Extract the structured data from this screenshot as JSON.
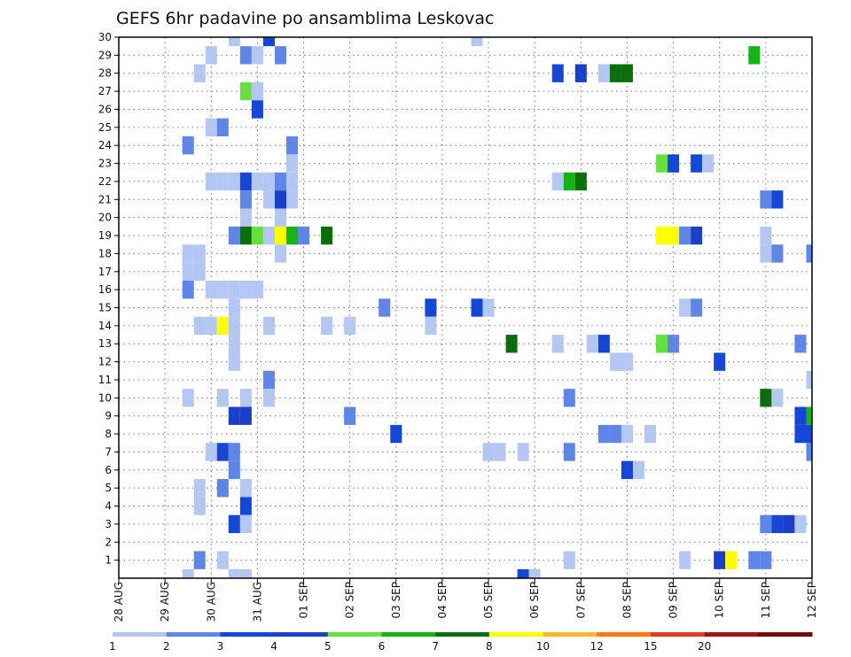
{
  "chart_data": {
    "type": "heatmap",
    "title": "GEFS 6hr padavine po ansamblima Leskovac",
    "xlabel": "",
    "ylabel": "",
    "x_tick_labels": [
      "28 AUG",
      "29 AUG",
      "30 AUG",
      "31 AUG",
      "01 SEP",
      "02 SEP",
      "03 SEP",
      "04 SEP",
      "05 SEP",
      "06 SEP",
      "07 SEP",
      "08 SEP",
      "09 SEP",
      "10 SEP",
      "11 SEP",
      "12 SEP"
    ],
    "y_tick_labels": [
      "1",
      "2",
      "3",
      "4",
      "5",
      "6",
      "7",
      "8",
      "9",
      "10",
      "11",
      "12",
      "13",
      "14",
      "15",
      "16",
      "17",
      "18",
      "19",
      "20",
      "21",
      "22",
      "23",
      "24",
      "25",
      "26",
      "27",
      "28",
      "29",
      "30"
    ],
    "x_range_days": [
      0,
      15
    ],
    "y_range": [
      0,
      30
    ],
    "grid": true,
    "colorbar": {
      "labels": [
        "1",
        "2",
        "3",
        "4",
        "5",
        "6",
        "7",
        "8",
        "10",
        "12",
        "15",
        "20"
      ],
      "colors": [
        "#b4c6f2",
        "#5f86e6",
        "#1446d8",
        "#1a3fc8",
        "#66e040",
        "#14b414",
        "#0a6e0a",
        "#ffff00",
        "#ffb432",
        "#ff7814",
        "#e03c28",
        "#a01414",
        "#6e0a0a"
      ]
    },
    "cells": [
      [
        2.5,
        30,
        1
      ],
      [
        3.25,
        30,
        3
      ],
      [
        7.75,
        30,
        1
      ],
      [
        2.0,
        29,
        1
      ],
      [
        2.75,
        29,
        2
      ],
      [
        3.0,
        29,
        1
      ],
      [
        3.5,
        29,
        2
      ],
      [
        13.75,
        29,
        6
      ],
      [
        1.75,
        28,
        1
      ],
      [
        9.5,
        28,
        3
      ],
      [
        10.0,
        28,
        4
      ],
      [
        10.5,
        28,
        1
      ],
      [
        10.75,
        28,
        7
      ],
      [
        11.0,
        28,
        7
      ],
      [
        2.75,
        27,
        5
      ],
      [
        3.0,
        27,
        1
      ],
      [
        3.0,
        26,
        3
      ],
      [
        2.0,
        25,
        1
      ],
      [
        2.25,
        25,
        2
      ],
      [
        1.5,
        24,
        2
      ],
      [
        3.75,
        24,
        2
      ],
      [
        3.75,
        23,
        1
      ],
      [
        11.75,
        23,
        5
      ],
      [
        12.0,
        23,
        3
      ],
      [
        12.5,
        23,
        3
      ],
      [
        12.75,
        23,
        1
      ],
      [
        2.0,
        22,
        1
      ],
      [
        2.25,
        22,
        1
      ],
      [
        2.5,
        22,
        1
      ],
      [
        2.75,
        22,
        3
      ],
      [
        3.0,
        22,
        1
      ],
      [
        3.25,
        22,
        1
      ],
      [
        3.5,
        22,
        2
      ],
      [
        3.75,
        22,
        1
      ],
      [
        9.5,
        22,
        1
      ],
      [
        9.75,
        22,
        6
      ],
      [
        10.0,
        22,
        7
      ],
      [
        2.75,
        21,
        2
      ],
      [
        3.25,
        21,
        1
      ],
      [
        3.5,
        21,
        4
      ],
      [
        3.75,
        21,
        1
      ],
      [
        14.0,
        21,
        2
      ],
      [
        14.25,
        21,
        3
      ],
      [
        2.75,
        20,
        1
      ],
      [
        3.5,
        20,
        1
      ],
      [
        2.5,
        19,
        2
      ],
      [
        2.75,
        19,
        7
      ],
      [
        3.0,
        19,
        5
      ],
      [
        3.25,
        19,
        1
      ],
      [
        3.5,
        19,
        8
      ],
      [
        3.75,
        19,
        6
      ],
      [
        4.0,
        19,
        2
      ],
      [
        4.5,
        19,
        7
      ],
      [
        11.75,
        19,
        8
      ],
      [
        12.0,
        19,
        8
      ],
      [
        12.25,
        19,
        2
      ],
      [
        12.5,
        19,
        4
      ],
      [
        14.0,
        19,
        1
      ],
      [
        1.5,
        18,
        1
      ],
      [
        1.75,
        18,
        1
      ],
      [
        3.5,
        18,
        1
      ],
      [
        14.0,
        18,
        1
      ],
      [
        14.25,
        18,
        2
      ],
      [
        15.0,
        18,
        2
      ],
      [
        1.5,
        17,
        1
      ],
      [
        1.75,
        17,
        1
      ],
      [
        1.5,
        16,
        2
      ],
      [
        2.0,
        16,
        1
      ],
      [
        2.25,
        16,
        1
      ],
      [
        2.5,
        16,
        1
      ],
      [
        2.75,
        16,
        1
      ],
      [
        3.0,
        16,
        1
      ],
      [
        2.5,
        15,
        1
      ],
      [
        5.75,
        15,
        2
      ],
      [
        6.75,
        15,
        3
      ],
      [
        7.75,
        15,
        3
      ],
      [
        8.0,
        15,
        1
      ],
      [
        12.25,
        15,
        1
      ],
      [
        12.5,
        15,
        2
      ],
      [
        1.75,
        14,
        1
      ],
      [
        2.0,
        14,
        1
      ],
      [
        2.25,
        14,
        8
      ],
      [
        2.5,
        14,
        1
      ],
      [
        3.25,
        14,
        1
      ],
      [
        4.5,
        14,
        1
      ],
      [
        5.0,
        14,
        1
      ],
      [
        6.75,
        14,
        1
      ],
      [
        2.5,
        13,
        1
      ],
      [
        8.5,
        13,
        7
      ],
      [
        9.5,
        13,
        1
      ],
      [
        10.25,
        13,
        1
      ],
      [
        10.5,
        13,
        3
      ],
      [
        11.75,
        13,
        5
      ],
      [
        12.0,
        13,
        2
      ],
      [
        14.75,
        13,
        2
      ],
      [
        2.5,
        12,
        1
      ],
      [
        10.75,
        12,
        1
      ],
      [
        11.0,
        12,
        1
      ],
      [
        13.0,
        12,
        3
      ],
      [
        3.25,
        11,
        2
      ],
      [
        15.0,
        11,
        1
      ],
      [
        1.5,
        10,
        1
      ],
      [
        2.25,
        10,
        1
      ],
      [
        2.75,
        10,
        1
      ],
      [
        3.25,
        10,
        1
      ],
      [
        9.75,
        10,
        2
      ],
      [
        14.0,
        10,
        7
      ],
      [
        14.25,
        10,
        1
      ],
      [
        2.5,
        9,
        4
      ],
      [
        2.75,
        9,
        4
      ],
      [
        5.0,
        9,
        2
      ],
      [
        14.75,
        9,
        3
      ],
      [
        15.0,
        9,
        6
      ],
      [
        6.0,
        8,
        3
      ],
      [
        10.5,
        8,
        2
      ],
      [
        10.75,
        8,
        2
      ],
      [
        11.0,
        8,
        1
      ],
      [
        11.5,
        8,
        1
      ],
      [
        14.75,
        8,
        3
      ],
      [
        15.0,
        8,
        3
      ],
      [
        2.0,
        7,
        1
      ],
      [
        2.25,
        7,
        3
      ],
      [
        2.5,
        7,
        2
      ],
      [
        8.0,
        7,
        1
      ],
      [
        8.25,
        7,
        1
      ],
      [
        8.75,
        7,
        1
      ],
      [
        9.75,
        7,
        2
      ],
      [
        15.0,
        7,
        2
      ],
      [
        2.5,
        6,
        2
      ],
      [
        11.0,
        6,
        3
      ],
      [
        11.25,
        6,
        1
      ],
      [
        1.75,
        5,
        1
      ],
      [
        2.25,
        5,
        2
      ],
      [
        2.75,
        5,
        1
      ],
      [
        1.75,
        4,
        1
      ],
      [
        2.75,
        4,
        3
      ],
      [
        2.5,
        3,
        3
      ],
      [
        2.75,
        3,
        1
      ],
      [
        14.0,
        3,
        2
      ],
      [
        14.25,
        3,
        3
      ],
      [
        14.5,
        3,
        4
      ],
      [
        14.75,
        3,
        1
      ],
      [
        1.75,
        1,
        2
      ],
      [
        2.25,
        1,
        1
      ],
      [
        9.75,
        1,
        1
      ],
      [
        12.25,
        1,
        1
      ],
      [
        13.0,
        1,
        4
      ],
      [
        13.25,
        1,
        8
      ],
      [
        13.75,
        1,
        2
      ],
      [
        14.0,
        1,
        2
      ],
      [
        1.5,
        0,
        1
      ],
      [
        2.5,
        0,
        1
      ],
      [
        2.75,
        0,
        1
      ],
      [
        8.75,
        0,
        3
      ],
      [
        9.0,
        0,
        1
      ]
    ]
  }
}
